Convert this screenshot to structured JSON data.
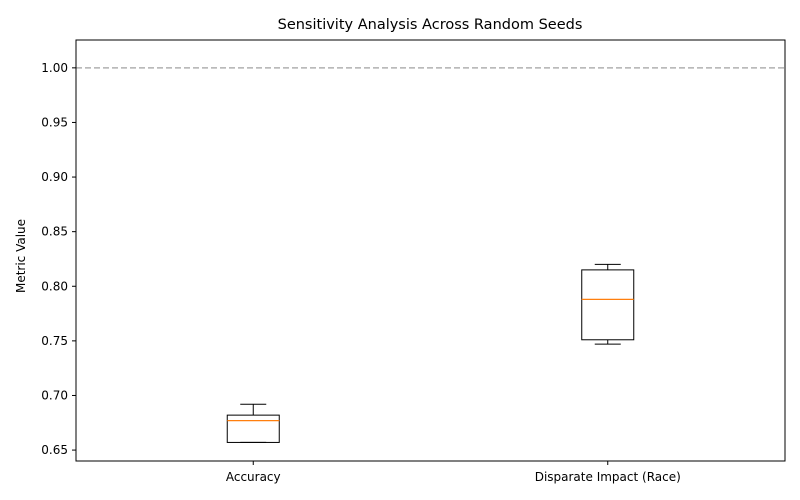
{
  "chart_data": {
    "type": "box",
    "title": "Sensitivity Analysis Across Random Seeds",
    "xlabel": "",
    "ylabel": "Metric Value",
    "ylim": [
      0.64,
      1.0255
    ],
    "yticks": [
      0.65,
      0.7,
      0.75,
      0.8,
      0.85,
      0.9,
      0.95,
      1.0
    ],
    "reference_line": {
      "y": 1.0,
      "style": "dashed",
      "color": "#b0b0b0"
    },
    "grid": false,
    "legend": "none",
    "categories": [
      "Accuracy",
      "Disparate Impact (Race)"
    ],
    "boxes": [
      {
        "name": "Accuracy",
        "whislo": 0.657,
        "q1": 0.657,
        "med": 0.677,
        "q3": 0.682,
        "whishi": 0.692
      },
      {
        "name": "Disparate Impact (Race)",
        "whislo": 0.747,
        "q1": 0.751,
        "med": 0.788,
        "q3": 0.815,
        "whishi": 0.82
      }
    ],
    "colors": {
      "box": "#000000",
      "median": "#ff7f0e",
      "reference": "#b0b0b0"
    }
  }
}
